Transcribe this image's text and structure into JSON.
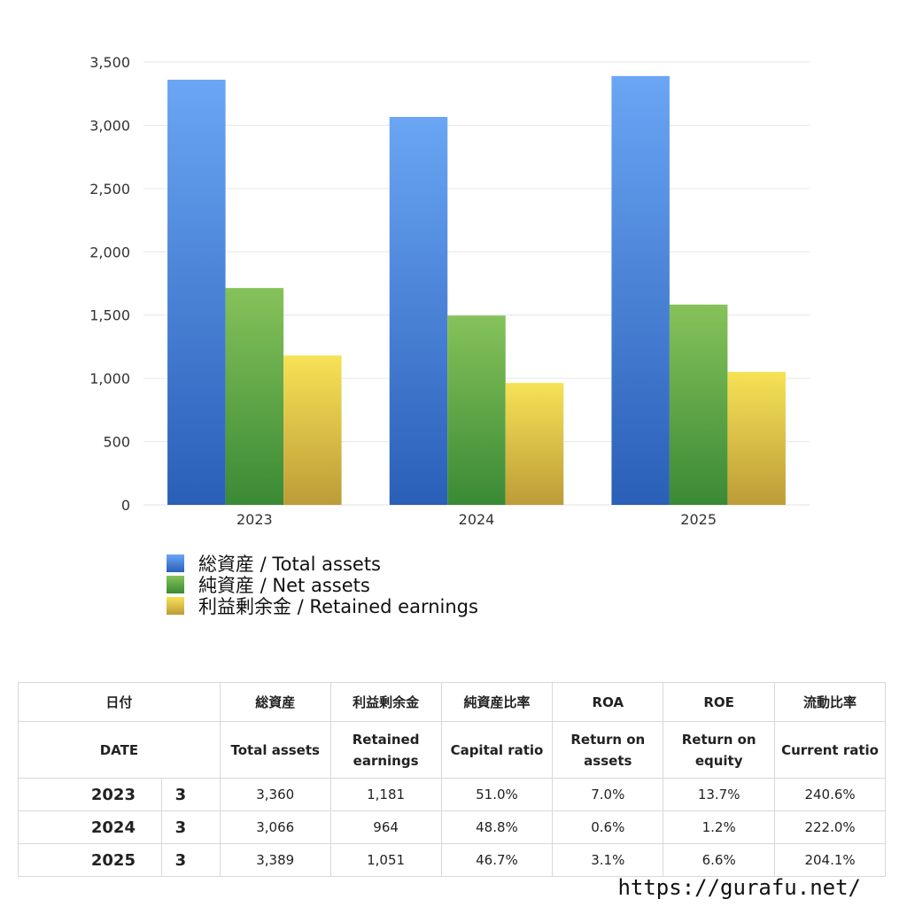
{
  "chart_data": {
    "type": "bar",
    "categories": [
      "2023",
      "2024",
      "2025"
    ],
    "series": [
      {
        "name": "総資産 / Total assets",
        "values": [
          3360,
          3066,
          3389
        ],
        "color_top": "#6aa6f4",
        "color_bottom": "#2a5fb8"
      },
      {
        "name": "純資産 / Net assets",
        "values": [
          1714,
          1496,
          1583
        ],
        "color_top": "#86c25a",
        "color_bottom": "#3a8a35"
      },
      {
        "name": "利益剰余金 / Retained earnings",
        "values": [
          1181,
          964,
          1051
        ],
        "color_top": "#f6e256",
        "color_bottom": "#bd9c38"
      }
    ],
    "ylim": [
      0,
      3500
    ],
    "yticks": [
      "0",
      "500",
      "1,000",
      "1,500",
      "2,000",
      "2,500",
      "3,000",
      "3,500"
    ],
    "ytick_values": [
      0,
      500,
      1000,
      1500,
      2000,
      2500,
      3000,
      3500
    ],
    "grid": true,
    "legend_position": "bottom-left"
  },
  "table": {
    "header_jp": [
      "日付",
      "",
      "総資産",
      "利益剰余金",
      "純資産比率",
      "ROA",
      "ROE",
      "流動比率"
    ],
    "header_en": [
      "DATE",
      "",
      "Total assets",
      "Retained earnings",
      "Capital ratio",
      "Return on assets",
      "Return on equity",
      "Current ratio"
    ],
    "rows": [
      {
        "year": "2023",
        "month": "3",
        "total_assets": "3,360",
        "retained": "1,181",
        "capital_ratio": "51.0%",
        "roa": "7.0%",
        "roe": "13.7%",
        "current_ratio": "240.6%"
      },
      {
        "year": "2024",
        "month": "3",
        "total_assets": "3,066",
        "retained": "964",
        "capital_ratio": "48.8%",
        "roa": "0.6%",
        "roe": "1.2%",
        "current_ratio": "222.0%"
      },
      {
        "year": "2025",
        "month": "3",
        "total_assets": "3,389",
        "retained": "1,051",
        "capital_ratio": "46.7%",
        "roa": "3.1%",
        "roe": "6.6%",
        "current_ratio": "204.1%"
      }
    ]
  },
  "footer": {
    "url": "https://gurafu.net/"
  }
}
